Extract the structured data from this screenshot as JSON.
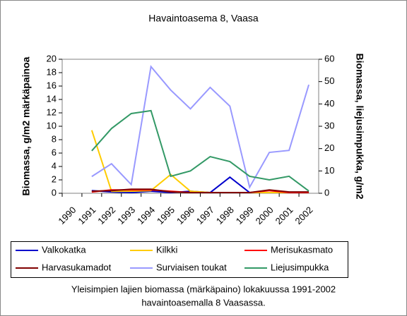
{
  "chart_data": {
    "type": "line",
    "title": "Havaintoasema 8, Vaasa",
    "y_label": "Biomassa, g/m2 märkäpainoa",
    "y2_label": "Biomassa, liejusimpukka, g/m2",
    "caption": [
      "Yleisimpien lajien biomassa (märkäpaino) lokakuussa 1991-2002",
      "havaintoasemalla 8 Vaasassa."
    ],
    "categories": [
      "1990",
      "1991",
      "1992",
      "1993",
      "1994",
      "1995",
      "1996",
      "1997",
      "1998",
      "1999",
      "2000",
      "2001",
      "2002"
    ],
    "ylim": [
      0,
      20
    ],
    "yticks": [
      0,
      2,
      4,
      6,
      8,
      10,
      12,
      14,
      16,
      18,
      20
    ],
    "y2lim": [
      0,
      60
    ],
    "y2ticks": [
      0,
      10,
      20,
      30,
      40,
      50,
      60
    ],
    "series": [
      {
        "name": "Valkokatka",
        "color": "#0000cc",
        "values": [
          null,
          0.4,
          0.2,
          0.1,
          0.3,
          0.1,
          0.3,
          0.1,
          2.4,
          0.1,
          0.1,
          0.1,
          0.1
        ]
      },
      {
        "name": "Kilkki",
        "color": "#ffcc00",
        "values": [
          null,
          9.4,
          0.3,
          0.3,
          0.4,
          2.8,
          0.3,
          0.1,
          0.1,
          0.1,
          0.1,
          0.1,
          0.1
        ]
      },
      {
        "name": "Merisukasmato",
        "color": "#ff0000",
        "values": [
          null,
          0.2,
          0.5,
          0.5,
          0.5,
          0.3,
          0.1,
          0.1,
          0.1,
          0.1,
          0.4,
          0.1,
          0.1
        ]
      },
      {
        "name": "Harvasukamadot",
        "color": "#800000",
        "values": [
          null,
          0.3,
          0.4,
          0.6,
          0.6,
          0.2,
          0.1,
          0.1,
          0.1,
          0.1,
          0.5,
          0.2,
          0.2
        ]
      },
      {
        "name": "Surviaisen toukat",
        "color": "#9999ff",
        "values": [
          null,
          2.5,
          4.4,
          1.3,
          18.9,
          15.4,
          12.6,
          15.8,
          13.0,
          0.9,
          6.1,
          6.4,
          16.2
        ]
      },
      {
        "name": "Liejusimpukka",
        "color": "#339966",
        "axis": "y2",
        "values": [
          null,
          19,
          29,
          35.7,
          37,
          7.6,
          10,
          16.4,
          14.2,
          7.6,
          6,
          7.6,
          1
        ]
      }
    ]
  }
}
